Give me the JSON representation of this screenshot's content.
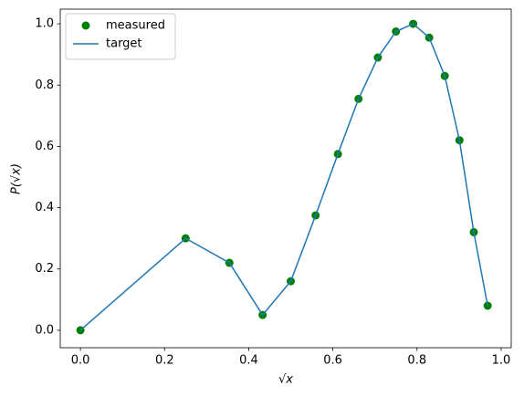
{
  "chart_data": {
    "type": "line",
    "x_label": "√x",
    "y_label": "P(√x)",
    "x": [
      0,
      0.25,
      0.354,
      0.433,
      0.5,
      0.559,
      0.612,
      0.661,
      0.707,
      0.75,
      0.791,
      0.829,
      0.866,
      0.901,
      0.935,
      0.968
    ],
    "series": [
      {
        "name": "measured",
        "kind": "scatter",
        "color": "#008000",
        "values": [
          0,
          0.3,
          0.22,
          0.05,
          0.16,
          0.375,
          0.575,
          0.755,
          0.89,
          0.975,
          1.0,
          0.955,
          0.83,
          0.62,
          0.32,
          0.08
        ]
      },
      {
        "name": "target",
        "kind": "line",
        "color": "#1f77b4",
        "values": [
          0,
          0.3,
          0.22,
          0.05,
          0.16,
          0.375,
          0.575,
          0.755,
          0.89,
          0.975,
          1.0,
          0.955,
          0.83,
          0.62,
          0.32,
          0.08
        ]
      }
    ],
    "xlim": [
      -0.048,
      1.024
    ],
    "ylim": [
      -0.057,
      1.048
    ],
    "xticks": [
      {
        "value": 0,
        "label": "0.0"
      },
      {
        "value": 0.2,
        "label": "0.2"
      },
      {
        "value": 0.4,
        "label": "0.4"
      },
      {
        "value": 0.6,
        "label": "0.6"
      },
      {
        "value": 0.8,
        "label": "0.8"
      },
      {
        "value": 1,
        "label": "1.0"
      }
    ],
    "yticks": [
      {
        "value": 0,
        "label": "0.0"
      },
      {
        "value": 0.2,
        "label": "0.2"
      },
      {
        "value": 0.4,
        "label": "0.4"
      },
      {
        "value": 0.6,
        "label": "0.6"
      },
      {
        "value": 0.8,
        "label": "0.8"
      },
      {
        "value": 1,
        "label": "1.0"
      }
    ],
    "legend": "upper left",
    "grid": false
  }
}
